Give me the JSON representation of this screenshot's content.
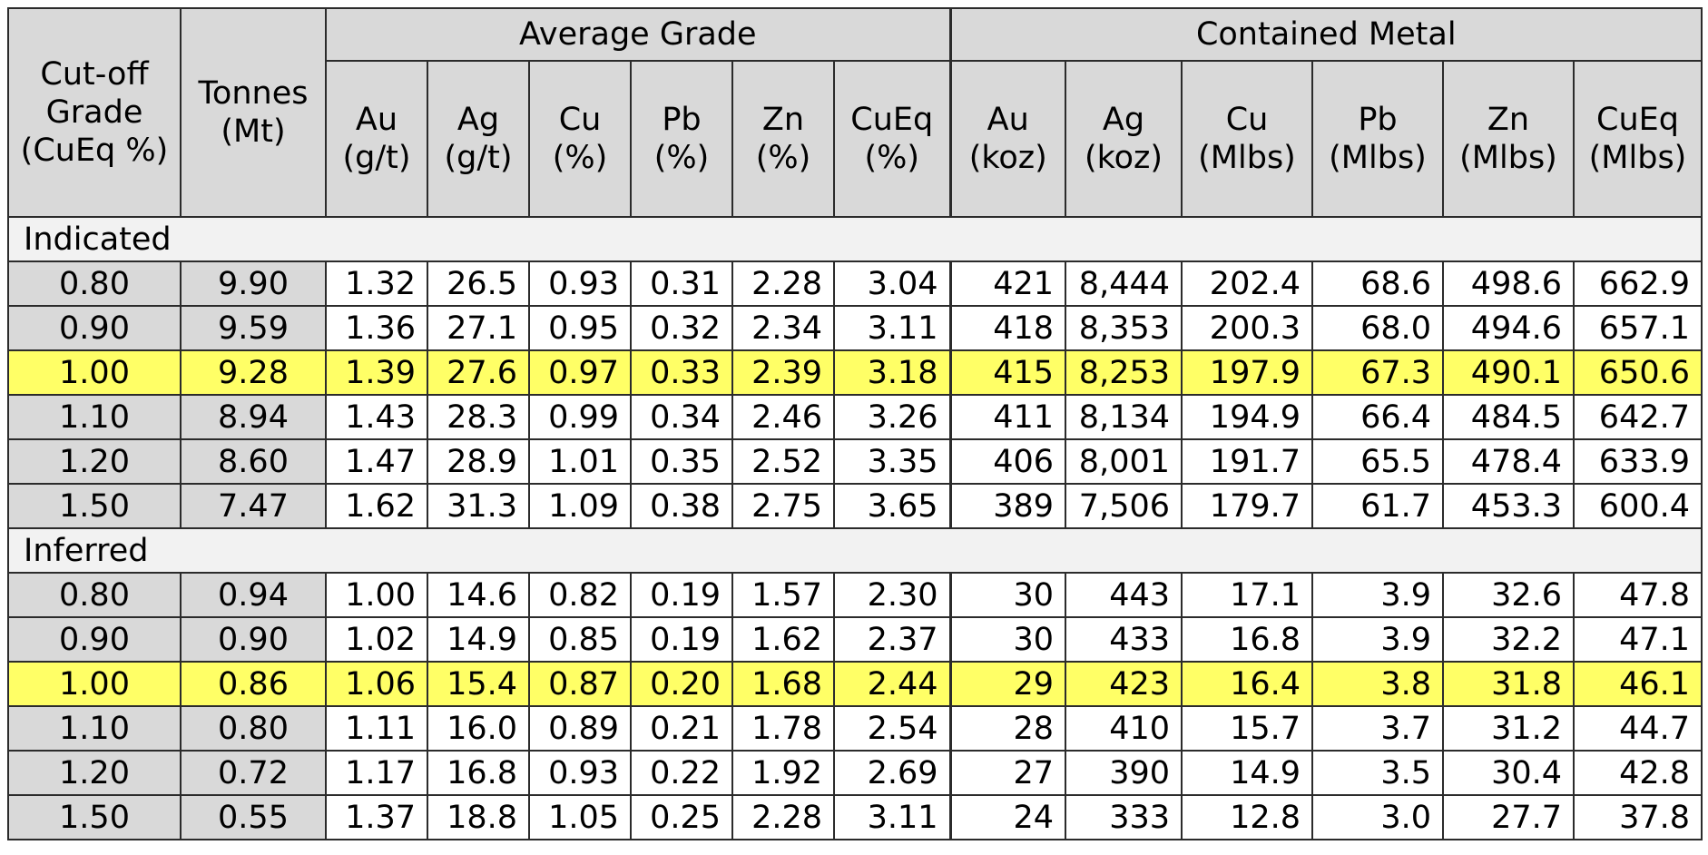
{
  "header": {
    "cutoff": "Cut-off Grade (CuEq %)",
    "tonnes": "Tonnes (Mt)",
    "avg_grade": "Average Grade",
    "contained_metal": "Contained Metal",
    "grade_cols": [
      "Au (g/t)",
      "Ag (g/t)",
      "Cu (%)",
      "Pb (%)",
      "Zn (%)",
      "CuEq (%)"
    ],
    "metal_cols": [
      "Au (koz)",
      "Ag (koz)",
      "Cu (Mlbs)",
      "Pb (Mlbs)",
      "Zn (Mlbs)",
      "CuEq (Mlbs)"
    ]
  },
  "sections": [
    {
      "label": "Indicated",
      "rows": [
        [
          "0.80",
          "9.90",
          "1.32",
          "26.5",
          "0.93",
          "0.31",
          "2.28",
          "3.04",
          "421",
          "8,444",
          "202.4",
          "68.6",
          "498.6",
          "662.9"
        ],
        [
          "0.90",
          "9.59",
          "1.36",
          "27.1",
          "0.95",
          "0.32",
          "2.34",
          "3.11",
          "418",
          "8,353",
          "200.3",
          "68.0",
          "494.6",
          "657.1"
        ],
        [
          "1.00",
          "9.28",
          "1.39",
          "27.6",
          "0.97",
          "0.33",
          "2.39",
          "3.18",
          "415",
          "8,253",
          "197.9",
          "67.3",
          "490.1",
          "650.6"
        ],
        [
          "1.10",
          "8.94",
          "1.43",
          "28.3",
          "0.99",
          "0.34",
          "2.46",
          "3.26",
          "411",
          "8,134",
          "194.9",
          "66.4",
          "484.5",
          "642.7"
        ],
        [
          "1.20",
          "8.60",
          "1.47",
          "28.9",
          "1.01",
          "0.35",
          "2.52",
          "3.35",
          "406",
          "8,001",
          "191.7",
          "65.5",
          "478.4",
          "633.9"
        ],
        [
          "1.50",
          "7.47",
          "1.62",
          "31.3",
          "1.09",
          "0.38",
          "2.75",
          "3.65",
          "389",
          "7,506",
          "179.7",
          "61.7",
          "453.3",
          "600.4"
        ]
      ]
    },
    {
      "label": "Inferred",
      "rows": [
        [
          "0.80",
          "0.94",
          "1.00",
          "14.6",
          "0.82",
          "0.19",
          "1.57",
          "2.30",
          "30",
          "443",
          "17.1",
          "3.9",
          "32.6",
          "47.8"
        ],
        [
          "0.90",
          "0.90",
          "1.02",
          "14.9",
          "0.85",
          "0.19",
          "1.62",
          "2.37",
          "30",
          "433",
          "16.8",
          "3.9",
          "32.2",
          "47.1"
        ],
        [
          "1.00",
          "0.86",
          "1.06",
          "15.4",
          "0.87",
          "0.20",
          "1.68",
          "2.44",
          "29",
          "423",
          "16.4",
          "3.8",
          "31.8",
          "46.1"
        ],
        [
          "1.10",
          "0.80",
          "1.11",
          "16.0",
          "0.89",
          "0.21",
          "1.78",
          "2.54",
          "28",
          "410",
          "15.7",
          "3.7",
          "31.2",
          "44.7"
        ],
        [
          "1.20",
          "0.72",
          "1.17",
          "16.8",
          "0.93",
          "0.22",
          "1.92",
          "2.69",
          "27",
          "390",
          "14.9",
          "3.5",
          "30.4",
          "42.8"
        ],
        [
          "1.50",
          "0.55",
          "1.37",
          "18.8",
          "1.05",
          "0.25",
          "2.28",
          "3.11",
          "24",
          "333",
          "12.8",
          "3.0",
          "27.7",
          "37.8"
        ]
      ]
    }
  ],
  "highlight_cutoff": "1.00",
  "colors": {
    "header_gray": "#d9d9d9",
    "section_bg": "#f2f2f2",
    "highlight": "#ffff66",
    "border": "#2b2b2b"
  }
}
